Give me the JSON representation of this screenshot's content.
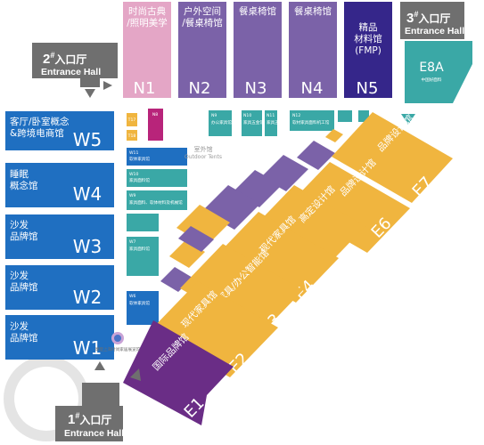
{
  "colors": {
    "purple": "#7b62a8",
    "navy": "#35268a",
    "pink": "#e4a6c6",
    "blue": "#1f6fc1",
    "orange": "#f0b53f",
    "teal": "#3aa8a6",
    "gray": "#6f6f6f",
    "magenta": "#b8247a",
    "dark_purple": "#6a2d86"
  },
  "entrances": {
    "hall1": {
      "num": "1",
      "sup": "#",
      "name": "入口厅",
      "en": "Entrance Hall"
    },
    "hall2": {
      "num": "2",
      "sup": "#",
      "name": "入口厅",
      "en": "Entrance Hall"
    },
    "hall3": {
      "num": "3",
      "sup": "#",
      "name": "入口厅",
      "en": "Entrance Hall"
    }
  },
  "north_halls": [
    {
      "code": "N1",
      "name_l1": "时尚古典",
      "name_l2": "/照明美学"
    },
    {
      "code": "N2",
      "name_l1": "户外空间",
      "name_l2": "/餐桌椅馆"
    },
    {
      "code": "N3",
      "name_l1": "餐桌椅馆",
      "name_l2": ""
    },
    {
      "code": "N4",
      "name_l1": "餐桌椅馆",
      "name_l2": ""
    },
    {
      "code": "N5",
      "name_l1": "精品",
      "name_l2": "材料馆",
      "name_l3": "(FMP)"
    }
  ],
  "west_halls": [
    {
      "code": "W5",
      "name_l1": "客厅/卧室概念",
      "name_l2": "&跨境电商馆"
    },
    {
      "code": "W4",
      "name_l1": "睡眠",
      "name_l2": "概念馆"
    },
    {
      "code": "W3",
      "name_l1": "沙发",
      "name_l2": "品牌馆"
    },
    {
      "code": "W2",
      "name_l1": "沙发",
      "name_l2": "品牌馆"
    },
    {
      "code": "W1",
      "name_l1": "沙发",
      "name_l2": "品牌馆"
    }
  ],
  "east_halls": [
    {
      "code": "E1",
      "name": "国际品牌馆"
    },
    {
      "code": "E2",
      "name": "现代家具馆"
    },
    {
      "code": "E3",
      "name": "现代家具/办公智能馆"
    },
    {
      "code": "E4",
      "name": "现代家具馆"
    },
    {
      "code": "E5",
      "name": "高定设计馆"
    },
    {
      "code": "E6",
      "name": "品牌设计馆"
    },
    {
      "code": "E7",
      "name": "品牌设计馆"
    }
  ],
  "e8a": {
    "code": "E8A",
    "name": "中国好面料"
  },
  "outdoor": {
    "cn": "室外馆",
    "en": "Outdoor Tents"
  },
  "small_halls": {
    "t17": "T17",
    "t18": "T18",
    "n8": "N8",
    "n9": "N9",
    "n10": "N10",
    "n11": "N11",
    "n12": "N12",
    "w11": "W11",
    "w10": "W10",
    "w9": "W9",
    "w7": "W7",
    "w6": "W6",
    "n9_desc": "办公家具馆",
    "n10_desc": "家具五金馆",
    "n11_desc": "家具五金馆",
    "n12_desc": "软材家具面料机工馆",
    "w11_desc": "软体家具馆",
    "w10_desc": "家具面料馆",
    "w9_desc": "家具面料、软体材料及机械馆",
    "w7_desc": "家具面料馆",
    "w6_desc": "软体家具馆"
  },
  "logo_caption": "摩登上海时尚家居展览馆"
}
